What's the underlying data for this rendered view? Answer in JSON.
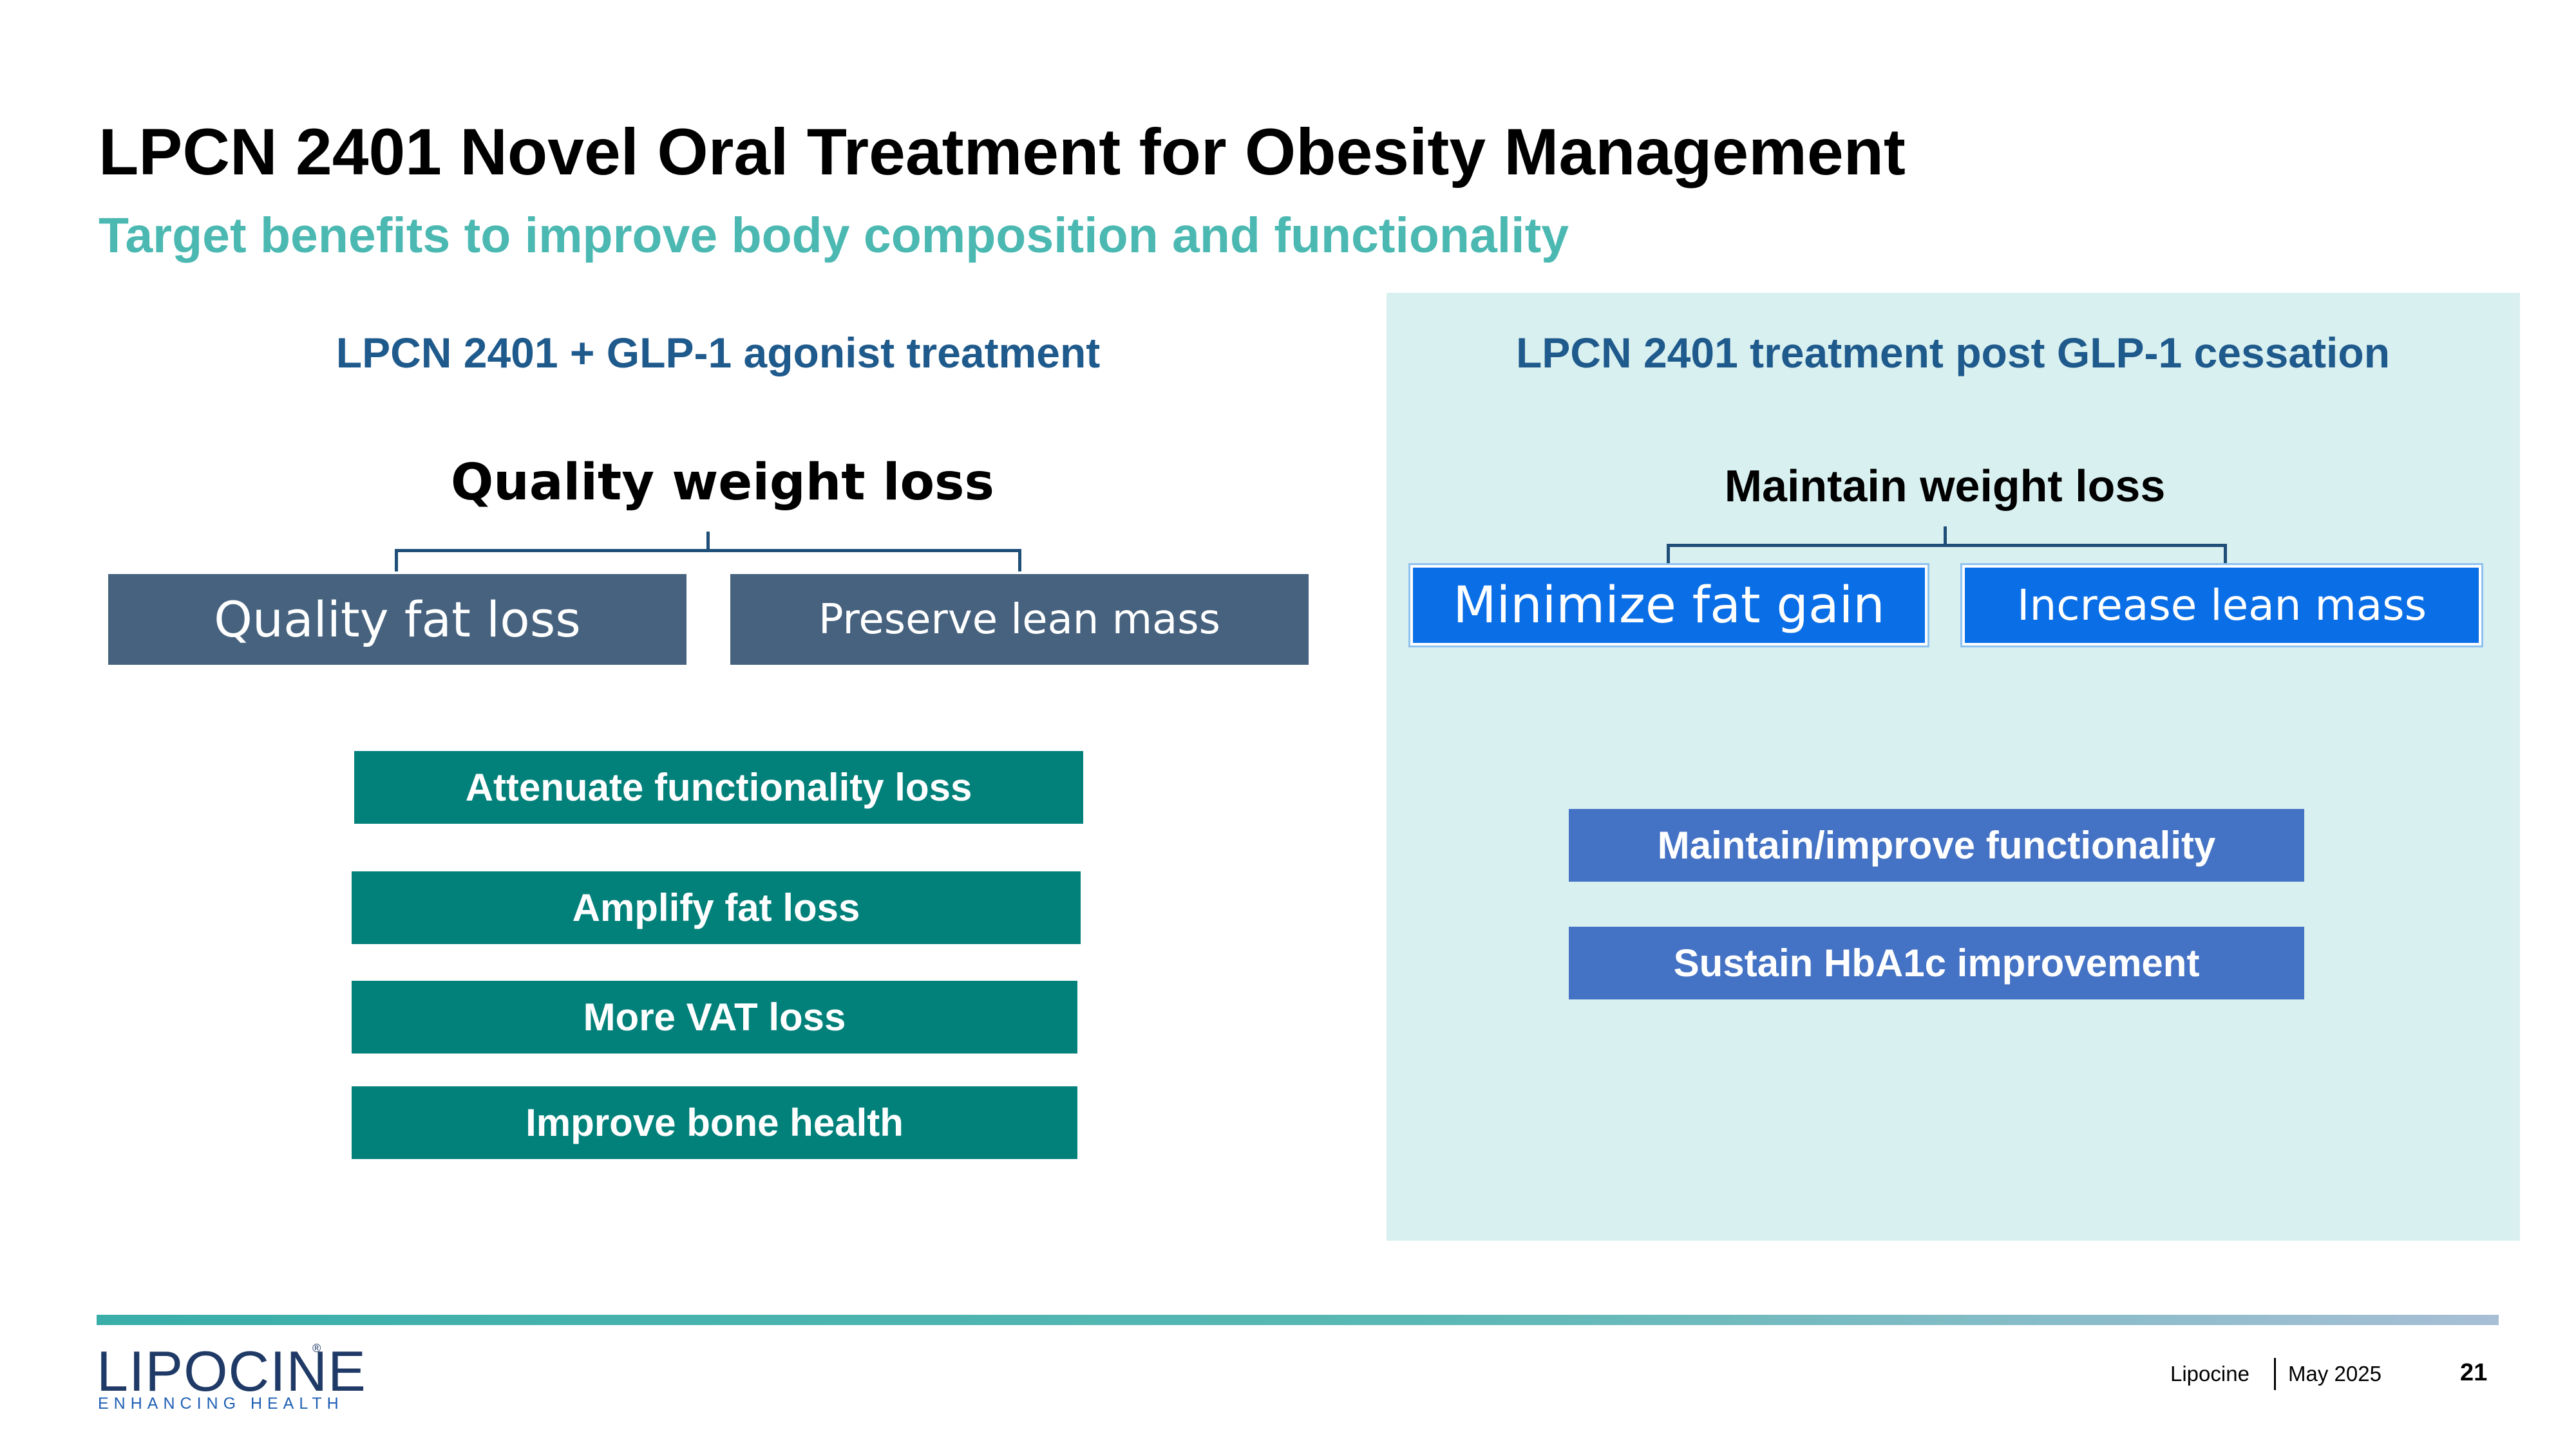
{
  "slide": {
    "title": "LPCN 2401 Novel Oral Treatment for Obesity Management",
    "subtitle": "Target benefits to improve body composition and functionality"
  },
  "left_section": {
    "heading": "LPCN 2401 + GLP-1 agonist treatment",
    "goal": "Quality weight loss",
    "sub_goals": [
      "Quality fat loss",
      "Preserve lean mass"
    ],
    "benefits": [
      "Attenuate functionality loss",
      "Amplify fat loss",
      "More VAT loss",
      "Improve bone health"
    ]
  },
  "right_section": {
    "heading": "LPCN 2401 treatment post GLP-1 cessation",
    "goal": "Maintain weight loss",
    "sub_goals": [
      "Minimize fat gain",
      "Increase lean mass"
    ],
    "benefits": [
      "Maintain/improve functionality",
      "Sustain HbA1c improvement"
    ]
  },
  "footer": {
    "logo_text": "LIPOCINE",
    "logo_mark": "®",
    "logo_tagline": "ENHANCING HEALTH",
    "company": "Lipocine",
    "date": "May 2025",
    "page_number": "21"
  },
  "colors": {
    "title": "#000000",
    "subtitle": "#4bb8b2",
    "section_heading": "#1f5a8c",
    "slate_box": "#46627e",
    "blue_box": "#0a6ee6",
    "teal_box": "#02807a",
    "steel_box": "#4472c4",
    "right_panel": "#d9f0f0"
  }
}
